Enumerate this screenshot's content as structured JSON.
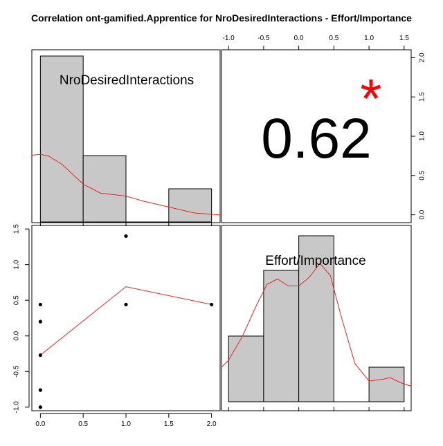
{
  "title": "Correlation ont-gamified.Apprentice for NroDesiredInteractions - Effort/Importance",
  "colors": {
    "bar_fill": "#c8c8c8",
    "curve": "#ee2222",
    "star": "#ff0000",
    "text": "#000000"
  },
  "chart_data": [
    {
      "type": "bar",
      "panel": "top-left",
      "label": "NroDesiredInteractions",
      "bins": [
        [
          0,
          0.5
        ],
        [
          0.5,
          1.0
        ],
        [
          1.0,
          1.5
        ],
        [
          1.5,
          2.0
        ]
      ],
      "counts": [
        5,
        2,
        0,
        1
      ],
      "density_curve": {
        "x": [
          -0.1,
          0.0,
          0.1,
          0.25,
          0.5,
          0.7,
          0.9,
          1.0,
          1.2,
          1.5,
          1.8,
          2.0,
          2.1
        ],
        "y": [
          3.35,
          3.4,
          3.3,
          2.9,
          1.9,
          1.45,
          1.35,
          1.3,
          1.05,
          0.75,
          0.45,
          0.38,
          0.35
        ]
      },
      "xlim": [
        -0.1,
        2.1
      ],
      "x_ticks": [
        "0.0",
        "0.5",
        "1.0",
        "1.5",
        "2.0"
      ]
    },
    {
      "type": "table",
      "panel": "top-right",
      "correlation": "0.62",
      "significance": "*",
      "x_ticks": [
        "-1.0",
        "-0.5",
        "0.0",
        "0.5",
        "1.0",
        "1.5"
      ],
      "y_ticks": [
        "0.0",
        "0.5",
        "1.0",
        "1.5",
        "2.0"
      ]
    },
    {
      "type": "scatter",
      "panel": "bottom-left",
      "points": [
        {
          "x": 0,
          "y": 0.44
        },
        {
          "x": 0,
          "y": 0.2
        },
        {
          "x": 0,
          "y": -0.27
        },
        {
          "x": 0,
          "y": -0.76
        },
        {
          "x": 0,
          "y": -1.0
        },
        {
          "x": 1,
          "y": 1.4
        },
        {
          "x": 1,
          "y": 0.44
        },
        {
          "x": 2,
          "y": 0.44
        }
      ],
      "smooth_line": {
        "x": [
          0,
          1,
          2
        ],
        "y": [
          -0.27,
          0.69,
          0.44
        ]
      },
      "xlim": [
        -0.1,
        2.1
      ],
      "ylim": [
        -1.05,
        1.55
      ],
      "x_ticks": [
        "0.0",
        "0.5",
        "1.0",
        "1.5",
        "2.0"
      ],
      "y_ticks": [
        "-1.0",
        "-0.5",
        "0.0",
        "0.5",
        "1.0",
        "1.5"
      ]
    },
    {
      "type": "bar",
      "panel": "bottom-right",
      "label": "Effort/Importance",
      "bins": [
        [
          -1.0,
          -0.5
        ],
        [
          -0.5,
          0.0
        ],
        [
          0.0,
          0.5
        ],
        [
          0.5,
          1.0
        ],
        [
          1.0,
          1.5
        ]
      ],
      "counts": [
        1.9,
        3.8,
        4.8,
        0,
        1
      ],
      "density_curve": {
        "x": [
          -1.1,
          -1.0,
          -0.8,
          -0.6,
          -0.45,
          -0.3,
          -0.15,
          0.0,
          0.15,
          0.3,
          0.45,
          0.6,
          0.8,
          1.0,
          1.2,
          1.3,
          1.45,
          1.6
        ],
        "y": [
          1.0,
          1.2,
          1.9,
          2.8,
          3.4,
          3.55,
          3.35,
          3.35,
          3.6,
          4.0,
          3.65,
          2.5,
          1.1,
          0.6,
          0.65,
          0.7,
          0.55,
          0.45
        ]
      },
      "xlim": [
        -1.1,
        1.6
      ]
    }
  ]
}
